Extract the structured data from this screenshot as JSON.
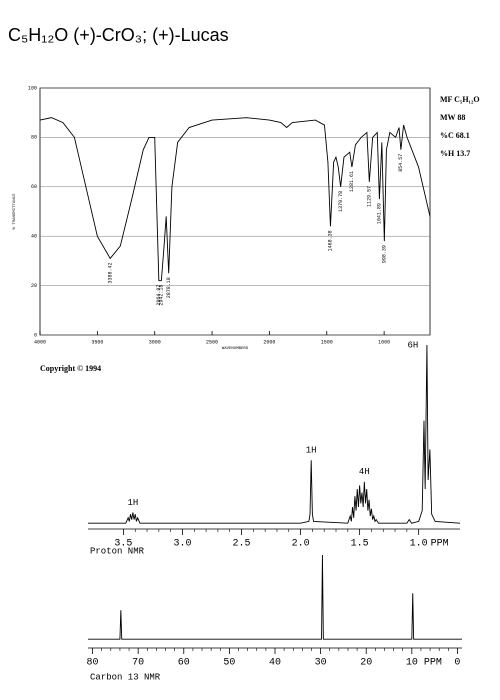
{
  "title": "C₅H₁₂O   (+)-CrO₃; (+)-Lucas",
  "chart_data": [
    {
      "type": "line",
      "xlabel": "WAVENUMBERS",
      "ylabel": "% TRANSMITTANCE",
      "xlim": [
        4000,
        600
      ],
      "ylim": [
        0,
        100
      ],
      "xticks": [
        4000,
        3500,
        3000,
        2500,
        2000,
        1500,
        1000
      ],
      "yticks": [
        0,
        20,
        40,
        60,
        80,
        100
      ],
      "grid": true,
      "color": "#000000",
      "x": [
        4000,
        3900,
        3800,
        3700,
        3600,
        3500,
        3388,
        3300,
        3200,
        3100,
        3050,
        3000,
        2964,
        2942,
        2920,
        2900,
        2878,
        2850,
        2800,
        2700,
        2500,
        2200,
        2000,
        1900,
        1850,
        1800,
        1600,
        1520,
        1490,
        1468,
        1440,
        1420,
        1400,
        1379,
        1350,
        1300,
        1281,
        1250,
        1200,
        1150,
        1129,
        1100,
        1060,
        1041,
        1020,
        998,
        980,
        950,
        900,
        870,
        854,
        830,
        800,
        700,
        600
      ],
      "values": [
        87,
        88,
        86,
        80,
        60,
        40,
        31,
        36,
        55,
        75,
        80,
        80,
        22,
        22,
        35,
        48,
        25,
        60,
        78,
        84,
        87,
        88,
        87,
        86,
        84,
        86,
        87,
        85,
        70,
        44,
        70,
        72,
        68,
        60,
        72,
        74,
        68,
        77,
        80,
        82,
        62,
        80,
        82,
        55,
        78,
        38,
        75,
        82,
        80,
        84,
        75,
        85,
        80,
        68,
        48
      ],
      "peak_labels": [
        3388.42,
        2964.97,
        2942.18,
        2878.18,
        1468.38,
        1379.78,
        1281.61,
        1129.57,
        1041.89,
        998.39,
        854.57
      ],
      "info": [
        "MF C₅H₁₂O",
        "MW 88",
        "%C 68.1",
        "%H 13.7"
      ],
      "copyright": "Copyright © 1994"
    },
    {
      "type": "line",
      "label": "Proton NMR",
      "x_unit": "PPM",
      "xlim": [
        3.8,
        0.65
      ],
      "ylim": [
        0,
        100
      ],
      "color": "#000000",
      "xticks": [
        3.5,
        {
          "value": 3,
          "label": "3.0"
        },
        2.5,
        {
          "value": 2,
          "label": "2.0"
        },
        1.5,
        {
          "value": 1,
          "label": "1.0"
        }
      ],
      "x": [
        3.8,
        3.48,
        3.46,
        3.45,
        3.44,
        3.43,
        3.42,
        3.41,
        3.4,
        3.39,
        3.38,
        3.36,
        2.0,
        1.93,
        1.92,
        1.91,
        1.9,
        1.89,
        1.6,
        1.58,
        1.57,
        1.56,
        1.55,
        1.54,
        1.53,
        1.52,
        1.51,
        1.5,
        1.49,
        1.48,
        1.47,
        1.46,
        1.45,
        1.44,
        1.43,
        1.42,
        1.41,
        1.4,
        1.39,
        1.38,
        1.37,
        1.36,
        1.34,
        1.1,
        1.08,
        1.06,
        1.0,
        0.97,
        0.955,
        0.945,
        0.93,
        0.92,
        0.905,
        0.89,
        0.86,
        0.65
      ],
      "values": [
        1,
        1,
        4,
        2,
        6,
        3,
        7,
        3,
        6,
        2,
        4,
        1,
        1,
        2,
        6,
        36,
        6,
        2,
        1,
        5,
        2,
        10,
        4,
        16,
        8,
        20,
        10,
        22,
        12,
        18,
        10,
        24,
        12,
        20,
        8,
        14,
        5,
        9,
        3,
        5,
        2,
        3,
        1,
        1,
        3,
        1,
        2,
        8,
        58,
        20,
        100,
        25,
        42,
        6,
        2,
        1
      ],
      "annotations": [
        {
          "x": 3.42,
          "text": "1H"
        },
        {
          "x": 1.91,
          "text": "1H"
        },
        {
          "x": 1.46,
          "text": "4H"
        },
        {
          "x": 0.93,
          "text": "6H"
        }
      ]
    },
    {
      "type": "line",
      "label": "Carbon 13 NMR",
      "x_unit": "PPM",
      "xlim": [
        81,
        -1
      ],
      "ylim": [
        0,
        100
      ],
      "color": "#000000",
      "xticks": [
        80,
        70,
        60,
        50,
        40,
        30,
        20,
        10,
        0
      ],
      "x": [
        81,
        74.0,
        73.8,
        73.6,
        29.8,
        29.6,
        29.4,
        10.0,
        9.8,
        9.6,
        -1
      ],
      "values": [
        1,
        1,
        35,
        1,
        1,
        100,
        1,
        1,
        55,
        1,
        1
      ]
    }
  ]
}
